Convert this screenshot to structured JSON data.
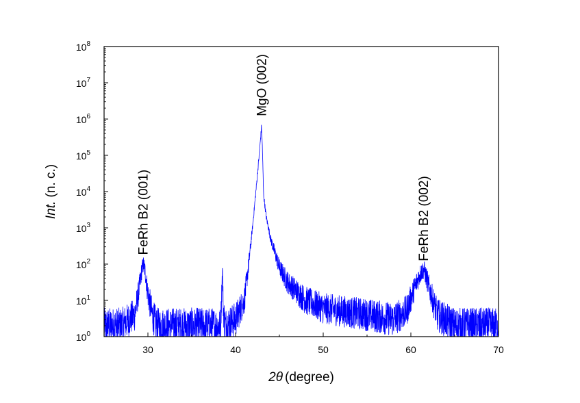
{
  "chart_data": {
    "type": "line",
    "xlabel": {
      "prefix": "2",
      "theta": "θ",
      "rest": "(degree)"
    },
    "ylabel": {
      "italic": "Int.",
      "rest": " (n. c.)"
    },
    "xlim": [
      25,
      70
    ],
    "ylim": [
      1,
      100000000
    ],
    "yscale": "log",
    "x_ticks": [
      "30",
      "40",
      "50",
      "60",
      "70"
    ],
    "x_tick_values": [
      30,
      40,
      50,
      60,
      70
    ],
    "y_ticks": [
      {
        "value": 1,
        "base": "10",
        "exp": "0"
      },
      {
        "value": 10,
        "base": "10",
        "exp": "1"
      },
      {
        "value": 100,
        "base": "10",
        "exp": "2"
      },
      {
        "value": 1000,
        "base": "10",
        "exp": "3"
      },
      {
        "value": 10000,
        "base": "10",
        "exp": "4"
      },
      {
        "value": 100000,
        "base": "10",
        "exp": "5"
      },
      {
        "value": 1000000,
        "base": "10",
        "exp": "6"
      },
      {
        "value": 10000000,
        "base": "10",
        "exp": "7"
      },
      {
        "value": 100000000,
        "base": "10",
        "exp": "8"
      }
    ],
    "series": [
      {
        "color": "#0000ff",
        "x": [
          25,
          27,
          28.5,
          29.0,
          29.3,
          29.5,
          29.7,
          30.0,
          30.5,
          31,
          35,
          38.3,
          38.5,
          38.6,
          38.8,
          40,
          41,
          41.5,
          42.0,
          42.5,
          42.8,
          42.95,
          43.05,
          43.2,
          43.5,
          44,
          45,
          46,
          48,
          50,
          55,
          58,
          59.5,
          60.5,
          61.0,
          61.3,
          61.5,
          61.8,
          62.3,
          63,
          65,
          70
        ],
        "y": [
          2,
          2,
          4,
          20,
          70,
          100,
          60,
          15,
          4,
          2,
          2,
          2,
          70,
          6,
          2,
          3,
          10,
          100,
          1500,
          30000,
          200000,
          600000,
          200000,
          8000,
          2000,
          500,
          80,
          30,
          10,
          6,
          4,
          3,
          5,
          25,
          50,
          65,
          70,
          40,
          15,
          4,
          2,
          2
        ]
      }
    ],
    "annotations": [
      {
        "text": "FeRh B2 (001)",
        "x": 29.5,
        "y": 180
      },
      {
        "text": "MgO (002)",
        "x": 43.0,
        "y": 1200000
      },
      {
        "text": "FeRh B2 (002)",
        "x": 61.5,
        "y": 120
      }
    ]
  }
}
